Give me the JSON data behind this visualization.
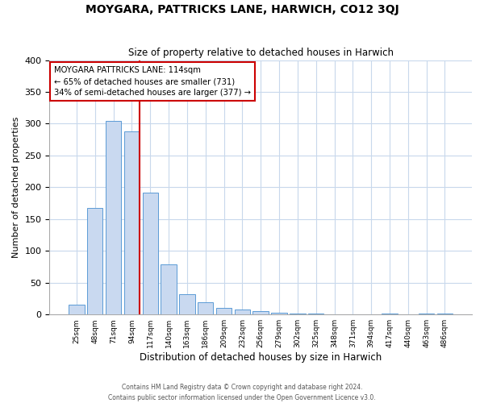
{
  "title": "MOYGARA, PATTRICKS LANE, HARWICH, CO12 3QJ",
  "subtitle": "Size of property relative to detached houses in Harwich",
  "xlabel": "Distribution of detached houses by size in Harwich",
  "ylabel": "Number of detached properties",
  "bar_labels": [
    "25sqm",
    "48sqm",
    "71sqm",
    "94sqm",
    "117sqm",
    "140sqm",
    "163sqm",
    "186sqm",
    "209sqm",
    "232sqm",
    "256sqm",
    "279sqm",
    "302sqm",
    "325sqm",
    "348sqm",
    "371sqm",
    "394sqm",
    "417sqm",
    "440sqm",
    "463sqm",
    "486sqm"
  ],
  "bar_heights": [
    16,
    167,
    305,
    288,
    191,
    79,
    32,
    19,
    10,
    8,
    5,
    3,
    1,
    1,
    0,
    0,
    0,
    2,
    0,
    1,
    1
  ],
  "bar_color": "#c9d9f0",
  "bar_edge_color": "#5b9bd5",
  "vline_color": "#cc0000",
  "annotation_title": "MOYGARA PATTRICKS LANE: 114sqm",
  "annotation_line1": "← 65% of detached houses are smaller (731)",
  "annotation_line2": "34% of semi-detached houses are larger (377) →",
  "annotation_box_color": "#ffffff",
  "annotation_box_edge": "#cc0000",
  "ylim": [
    0,
    400
  ],
  "yticks": [
    0,
    50,
    100,
    150,
    200,
    250,
    300,
    350,
    400
  ],
  "footer_line1": "Contains HM Land Registry data © Crown copyright and database right 2024.",
  "footer_line2": "Contains public sector information licensed under the Open Government Licence v3.0.",
  "background_color": "#ffffff",
  "grid_color": "#c8d8ec"
}
